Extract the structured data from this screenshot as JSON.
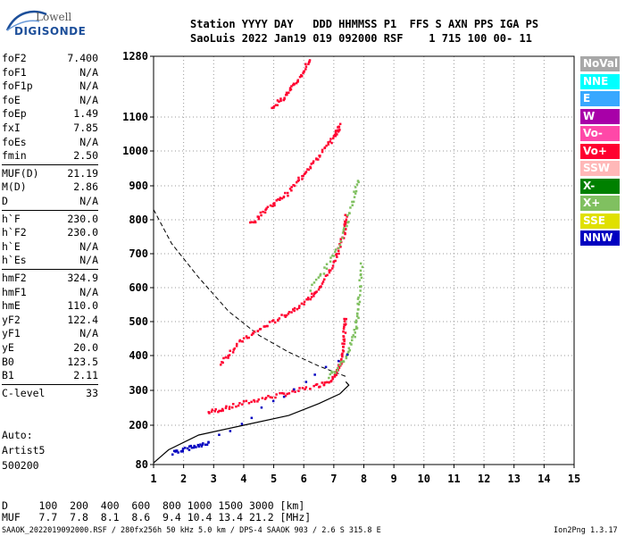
{
  "logo": {
    "line1": "Lowell",
    "line2": "DIGISONDE"
  },
  "header": {
    "line1": "Station YYYY DAY   DDD HHMMSS P1  FFS S AXN PPS IGA PS",
    "line2": "SaoLuis 2022 Jan19 019 092000 RSF    1 715 100 00- 11"
  },
  "params": [
    {
      "key": "foF2",
      "value": "7.400"
    },
    {
      "key": "foF1",
      "value": "N/A"
    },
    {
      "key": "foF1p",
      "value": "N/A"
    },
    {
      "key": "foE",
      "value": "N/A"
    },
    {
      "key": "foEp",
      "value": "1.49"
    },
    {
      "key": "fxI",
      "value": "7.85"
    },
    {
      "key": "foEs",
      "value": "N/A"
    },
    {
      "key": "fmin",
      "value": "2.50"
    },
    {
      "key": "MUF(D)",
      "value": "21.19"
    },
    {
      "key": "M(D)",
      "value": "2.86"
    },
    {
      "key": "D",
      "value": "N/A"
    },
    {
      "key": "h`F",
      "value": "230.0"
    },
    {
      "key": "h`F2",
      "value": "230.0"
    },
    {
      "key": "h`E",
      "value": "N/A"
    },
    {
      "key": "h`Es",
      "value": "N/A"
    },
    {
      "key": "hmF2",
      "value": "324.9"
    },
    {
      "key": "hmF1",
      "value": "N/A"
    },
    {
      "key": "hmE",
      "value": "110.0"
    },
    {
      "key": "yF2",
      "value": "122.4"
    },
    {
      "key": "yF1",
      "value": "N/A"
    },
    {
      "key": "yE",
      "value": "20.0"
    },
    {
      "key": "B0",
      "value": "123.5"
    },
    {
      "key": "B1",
      "value": "2.11"
    },
    {
      "key": "C-level",
      "value": "33"
    }
  ],
  "auto": {
    "line1": "Auto:",
    "line2": "Artist5",
    "line3": "500200"
  },
  "muf_table": {
    "d_line": "D     100  200  400  600  800 1000 1500 3000 [km]",
    "muf_line": "MUF   7.7  7.8  8.1  8.6  9.4 10.4 13.4 21.2 [MHz]"
  },
  "footer": {
    "left": "SAAOK_2022019092000.RSF / 280fx256h 50 kHz 5.0 km / DPS-4 SAAOK 903 / 2.6 S 315.8 E",
    "right": "Ion2Png 1.3.17"
  },
  "legend": [
    {
      "label": "NoVal",
      "color": "#a8a8a8",
      "text": "#ffffff"
    },
    {
      "label": "NNE",
      "color": "#00ffff",
      "text": "#ffffff"
    },
    {
      "label": "E",
      "color": "#38a8ff",
      "text": "#ffffff"
    },
    {
      "label": "W",
      "color": "#a800a8",
      "text": "#ffffff"
    },
    {
      "label": "Vo-",
      "color": "#ff48a8",
      "text": "#ffffff"
    },
    {
      "label": "Vo+",
      "color": "#ff0030",
      "text": "#ffffff"
    },
    {
      "label": "SSW",
      "color": "#ffb8b8",
      "text": "#ffffff"
    },
    {
      "label": "X-",
      "color": "#008000",
      "text": "#ffffff"
    },
    {
      "label": "X+",
      "color": "#80c060",
      "text": "#ffffff"
    },
    {
      "label": "SSE",
      "color": "#e0e000",
      "text": "#ffffff"
    },
    {
      "label": "NNW",
      "color": "#0000c0",
      "text": "#ffffff"
    }
  ],
  "chart_data": {
    "type": "scatter",
    "title": "",
    "xlabel": "",
    "ylabel": "",
    "xlim": [
      1,
      15
    ],
    "ylim": [
      80,
      1280
    ],
    "x_ticks": [
      "1",
      "2",
      "3",
      "4",
      "5",
      "6",
      "7",
      "8",
      "9",
      "10",
      "11",
      "12",
      "13",
      "14",
      "15"
    ],
    "y_ticks": [
      "80",
      "200",
      "300",
      "400",
      "500",
      "600",
      "700",
      "800",
      "900",
      "1000",
      "1100",
      "1280"
    ],
    "y_scale": "non-uniform (as printed)",
    "grid": "dotted",
    "legend_position": "right",
    "traces": [
      {
        "name": "Vo+",
        "color": "#ff0030",
        "points": [
          [
            2.8,
            240
          ],
          [
            3.5,
            255
          ],
          [
            4.5,
            278
          ],
          [
            5.5,
            296
          ],
          [
            6.5,
            318
          ],
          [
            7.0,
            340
          ],
          [
            7.2,
            380
          ],
          [
            7.3,
            450
          ],
          [
            7.35,
            520
          ]
        ]
      },
      {
        "name": "Vo+",
        "color": "#ff0030",
        "points": [
          [
            3.2,
            380
          ],
          [
            3.8,
            440
          ],
          [
            4.5,
            480
          ],
          [
            5.3,
            520
          ],
          [
            6.0,
            560
          ],
          [
            6.5,
            600
          ],
          [
            7.0,
            680
          ],
          [
            7.3,
            760
          ],
          [
            7.4,
            820
          ]
        ]
      },
      {
        "name": "Vo+",
        "color": "#ff0030",
        "points": [
          [
            4.2,
            790
          ],
          [
            4.8,
            840
          ],
          [
            5.4,
            880
          ],
          [
            6.0,
            940
          ],
          [
            6.5,
            990
          ],
          [
            7.0,
            1050
          ],
          [
            7.2,
            1080
          ]
        ]
      },
      {
        "name": "Vo+",
        "color": "#ff0030",
        "points": [
          [
            4.9,
            1130
          ],
          [
            5.4,
            1170
          ],
          [
            5.8,
            1215
          ],
          [
            6.2,
            1280
          ]
        ]
      },
      {
        "name": "X+",
        "color": "#80c060",
        "points": [
          [
            6.8,
            340
          ],
          [
            7.4,
            400
          ],
          [
            7.7,
            480
          ],
          [
            7.8,
            560
          ],
          [
            7.9,
            680
          ]
        ]
      },
      {
        "name": "X+",
        "color": "#80c060",
        "points": [
          [
            6.2,
            600
          ],
          [
            7.0,
            700
          ],
          [
            7.5,
            820
          ],
          [
            7.8,
            930
          ]
        ]
      },
      {
        "name": "NNW",
        "color": "#0000c0",
        "points": [
          [
            1.6,
            120
          ],
          [
            2.2,
            135
          ],
          [
            2.8,
            150
          ],
          [
            7.8,
            430
          ]
        ]
      }
    ],
    "profile_solid": [
      [
        1,
        85
      ],
      [
        1.5,
        125
      ],
      [
        2.5,
        170
      ],
      [
        4,
        200
      ],
      [
        5.5,
        228
      ],
      [
        6.5,
        262
      ],
      [
        7.2,
        290
      ],
      [
        7.5,
        315
      ],
      [
        7.4,
        325
      ]
    ],
    "profile_dashed": [
      [
        1,
        830
      ],
      [
        1.6,
        730
      ],
      [
        2.5,
        630
      ],
      [
        3.5,
        530
      ],
      [
        4.5,
        460
      ],
      [
        5.5,
        410
      ],
      [
        6.5,
        370
      ],
      [
        7.4,
        340
      ]
    ]
  }
}
